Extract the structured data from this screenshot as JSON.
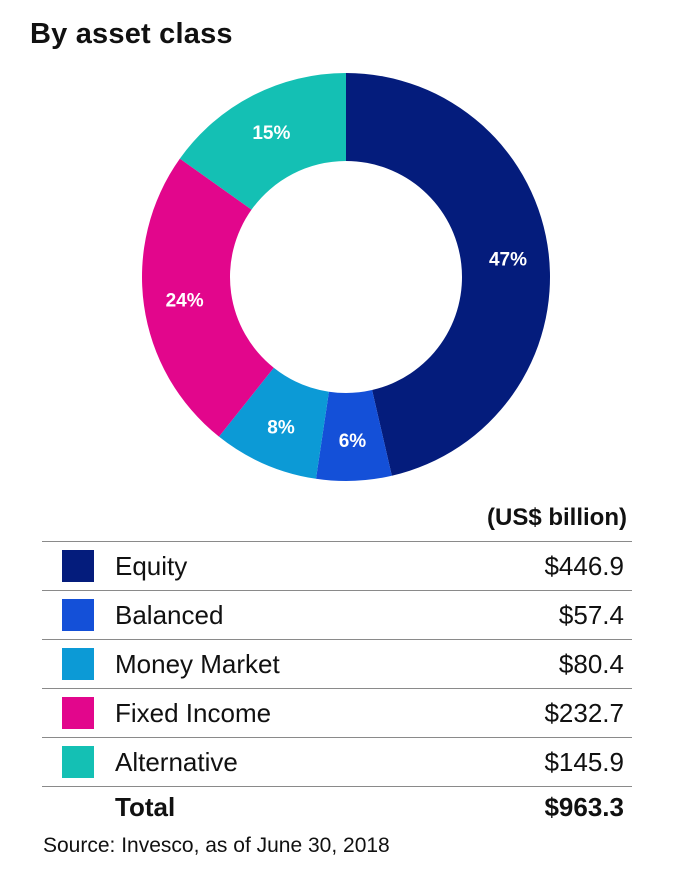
{
  "title": "By asset class",
  "unit_label": "(US$ billion)",
  "chart_data": {
    "type": "pie",
    "donut": true,
    "title": "By asset class",
    "slices": [
      {
        "name": "Equity",
        "percent_label": "47%",
        "value": 446.9,
        "value_label": "$446.9",
        "color": "#041c7c"
      },
      {
        "name": "Balanced",
        "percent_label": "6%",
        "value": 57.4,
        "value_label": "$57.4",
        "color": "#1450d8"
      },
      {
        "name": "Money Market",
        "percent_label": "8%",
        "value": 80.4,
        "value_label": "$80.4",
        "color": "#0c9ad6"
      },
      {
        "name": "Fixed Income",
        "percent_label": "24%",
        "value": 232.7,
        "value_label": "$232.7",
        "color": "#e2068c"
      },
      {
        "name": "Alternative",
        "percent_label": "15%",
        "value": 145.9,
        "value_label": "$145.9",
        "color": "#14c0b4"
      }
    ],
    "total_label": "Total",
    "total_value": "$963.3"
  },
  "source": "Source: Invesco, as of June 30, 2018"
}
